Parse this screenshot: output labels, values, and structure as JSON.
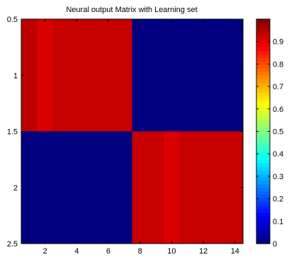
{
  "chart_data": {
    "type": "heatmap",
    "title": "Neural output Matrix with Learning set",
    "xlabel": "",
    "ylabel": "",
    "x": [
      1,
      2,
      3,
      4,
      5,
      6,
      7,
      8,
      9,
      10,
      11,
      12,
      13,
      14
    ],
    "y": [
      1,
      2
    ],
    "values": [
      [
        0.94,
        0.91,
        0.93,
        0.93,
        0.93,
        0.93,
        0.93,
        0.0,
        0.0,
        0.0,
        0.0,
        0.0,
        0.0,
        0.0
      ],
      [
        0.0,
        0.0,
        0.0,
        0.0,
        0.0,
        0.0,
        0.0,
        0.93,
        0.93,
        0.91,
        0.93,
        0.93,
        0.93,
        0.93
      ]
    ],
    "xlim": [
      0.5,
      14.5
    ],
    "ylim": [
      0.5,
      2.5
    ],
    "y_reversed": true,
    "xticks": [
      2,
      4,
      6,
      8,
      10,
      12,
      14
    ],
    "xtick_labels": [
      "2",
      "4",
      "6",
      "8",
      "10",
      "12",
      "14"
    ],
    "yticks": [
      0.5,
      1,
      1.5,
      2,
      2.5
    ],
    "ytick_labels": [
      "0.5",
      "1",
      "1.5",
      "2",
      "2.5"
    ],
    "colorbar": {
      "colormap": "jet",
      "range": [
        0,
        1
      ],
      "ticks": [
        0,
        0.1,
        0.2,
        0.3,
        0.4,
        0.5,
        0.6,
        0.7,
        0.8,
        0.9
      ],
      "tick_labels": [
        "0",
        "0.1",
        "0.2",
        "0.3",
        "0.4",
        "0.5",
        "0.6",
        "0.7",
        "0.8",
        "0.9"
      ]
    },
    "grid": false
  }
}
